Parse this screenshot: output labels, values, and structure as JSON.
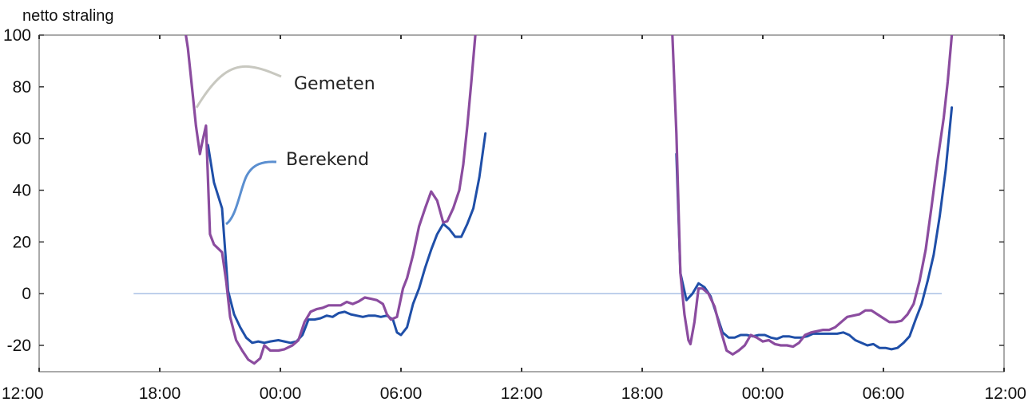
{
  "chart_data": {
    "type": "line",
    "title": "",
    "ylabel": "netto straling",
    "xlabel": "",
    "ylim": [
      -30,
      100
    ],
    "yticks": [
      100,
      80,
      60,
      40,
      20,
      0,
      -20
    ],
    "xlim_hours": [
      0,
      48
    ],
    "xtick_hours": [
      0,
      6,
      12,
      18,
      24,
      30,
      36,
      42,
      48
    ],
    "xtick_labels": [
      "12:00",
      "18:00",
      "00:00",
      "06:00",
      "12:00",
      "18:00",
      "00:00",
      "06:00",
      "12:00"
    ],
    "grid": false,
    "zero_line": {
      "y": 0,
      "x_from_hours": 4.7,
      "x_to_hours": 44.9,
      "color": "#a9bfe4"
    },
    "annotations": [
      {
        "text": "Gemeten",
        "series": "Gemeten"
      },
      {
        "text": "Berekend",
        "series": "Berekend"
      }
    ],
    "colors": {
      "Gemeten": "#8b4c9f",
      "Berekend": "#1f4fa8",
      "gemeten_leader": "#c8c8c0",
      "berekend_leader": "#5b8fd0"
    },
    "series": [
      {
        "name": "Gemeten",
        "segments": [
          [
            [
              7.3,
              100
            ],
            [
              7.4,
              95
            ],
            [
              7.6,
              80
            ],
            [
              7.8,
              65
            ],
            [
              8.0,
              54
            ],
            [
              8.1,
              58
            ],
            [
              8.3,
              65
            ],
            [
              8.5,
              23
            ],
            [
              8.7,
              19
            ],
            [
              8.9,
              17.5
            ],
            [
              9.1,
              16
            ],
            [
              9.3,
              5
            ],
            [
              9.5,
              -9
            ],
            [
              9.8,
              -18
            ],
            [
              10.1,
              -22
            ],
            [
              10.4,
              -25.5
            ],
            [
              10.7,
              -27
            ],
            [
              11.0,
              -25
            ],
            [
              11.2,
              -20
            ],
            [
              11.5,
              -22
            ],
            [
              11.9,
              -22
            ],
            [
              12.2,
              -21.5
            ],
            [
              12.6,
              -20
            ],
            [
              12.9,
              -18
            ],
            [
              13.2,
              -11
            ],
            [
              13.5,
              -7
            ],
            [
              13.8,
              -6
            ],
            [
              14.1,
              -5.5
            ],
            [
              14.4,
              -4.5
            ],
            [
              14.7,
              -4.5
            ],
            [
              15.0,
              -4.5
            ],
            [
              15.3,
              -3.2
            ],
            [
              15.6,
              -4
            ],
            [
              15.9,
              -3
            ],
            [
              16.2,
              -1.5
            ],
            [
              16.5,
              -2
            ],
            [
              16.8,
              -2.5
            ],
            [
              17.1,
              -4
            ],
            [
              17.3,
              -8
            ],
            [
              17.5,
              -10
            ],
            [
              17.8,
              -9
            ],
            [
              18.1,
              2
            ],
            [
              18.3,
              6
            ],
            [
              18.6,
              15
            ],
            [
              18.9,
              26
            ],
            [
              19.2,
              33
            ],
            [
              19.5,
              39.5
            ],
            [
              19.8,
              36
            ],
            [
              20.1,
              27.5
            ],
            [
              20.3,
              28
            ],
            [
              20.6,
              33
            ],
            [
              20.9,
              40
            ],
            [
              21.1,
              50
            ],
            [
              21.3,
              65
            ],
            [
              21.5,
              82
            ],
            [
              21.7,
              100
            ]
          ],
          [
            [
              31.5,
              100
            ],
            [
              31.7,
              62
            ],
            [
              31.9,
              8
            ],
            [
              32.1,
              -8
            ],
            [
              32.3,
              -18
            ],
            [
              32.4,
              -19.5
            ],
            [
              32.6,
              -11
            ],
            [
              32.8,
              2
            ],
            [
              33.0,
              2
            ],
            [
              33.3,
              0
            ],
            [
              33.6,
              -5
            ],
            [
              33.9,
              -14
            ],
            [
              34.2,
              -22
            ],
            [
              34.5,
              -23.5
            ],
            [
              34.8,
              -22
            ],
            [
              35.1,
              -20
            ],
            [
              35.4,
              -16
            ],
            [
              35.7,
              -17
            ],
            [
              36.0,
              -18.5
            ],
            [
              36.3,
              -18
            ],
            [
              36.6,
              -19.5
            ],
            [
              36.9,
              -20
            ],
            [
              37.2,
              -20
            ],
            [
              37.5,
              -20.5
            ],
            [
              37.8,
              -19
            ],
            [
              38.1,
              -16
            ],
            [
              38.4,
              -15
            ],
            [
              38.7,
              -14.5
            ],
            [
              39.0,
              -14
            ],
            [
              39.3,
              -14
            ],
            [
              39.6,
              -13
            ],
            [
              39.9,
              -11
            ],
            [
              40.2,
              -9
            ],
            [
              40.5,
              -8.5
            ],
            [
              40.8,
              -8
            ],
            [
              41.1,
              -6.5
            ],
            [
              41.4,
              -6.5
            ],
            [
              41.7,
              -8
            ],
            [
              42.0,
              -9.5
            ],
            [
              42.3,
              -11
            ],
            [
              42.6,
              -11
            ],
            [
              42.9,
              -10.5
            ],
            [
              43.2,
              -8
            ],
            [
              43.5,
              -4
            ],
            [
              43.8,
              5
            ],
            [
              44.1,
              17
            ],
            [
              44.4,
              34
            ],
            [
              44.7,
              52
            ],
            [
              45.0,
              68
            ],
            [
              45.2,
              82
            ],
            [
              45.4,
              100
            ]
          ]
        ]
      },
      {
        "name": "Berekend",
        "segments": [
          [
            [
              8.4,
              57.5
            ],
            [
              8.7,
              43
            ],
            [
              9.1,
              33
            ],
            [
              9.4,
              1
            ],
            [
              9.7,
              -8
            ],
            [
              10.0,
              -13
            ],
            [
              10.3,
              -17
            ],
            [
              10.6,
              -19
            ],
            [
              10.9,
              -18.5
            ],
            [
              11.2,
              -19
            ],
            [
              11.5,
              -18.5
            ],
            [
              11.9,
              -18
            ],
            [
              12.2,
              -18.5
            ],
            [
              12.5,
              -19
            ],
            [
              12.8,
              -18.5
            ],
            [
              13.1,
              -16
            ],
            [
              13.4,
              -10
            ],
            [
              13.7,
              -10
            ],
            [
              14.0,
              -9.5
            ],
            [
              14.3,
              -8.5
            ],
            [
              14.6,
              -9
            ],
            [
              14.9,
              -7.5
            ],
            [
              15.2,
              -7
            ],
            [
              15.5,
              -8
            ],
            [
              15.8,
              -8.5
            ],
            [
              16.1,
              -9
            ],
            [
              16.4,
              -8.5
            ],
            [
              16.7,
              -8.5
            ],
            [
              17.0,
              -9
            ],
            [
              17.3,
              -8.5
            ],
            [
              17.6,
              -10
            ],
            [
              17.8,
              -15
            ],
            [
              18.0,
              -16
            ],
            [
              18.3,
              -13
            ],
            [
              18.6,
              -4
            ],
            [
              18.9,
              2
            ],
            [
              19.2,
              10
            ],
            [
              19.5,
              17
            ],
            [
              19.8,
              23
            ],
            [
              20.1,
              27
            ],
            [
              20.4,
              25
            ],
            [
              20.7,
              22
            ],
            [
              21.0,
              22
            ],
            [
              21.3,
              27
            ],
            [
              21.6,
              33
            ],
            [
              21.9,
              45
            ],
            [
              22.2,
              62
            ]
          ],
          [
            [
              31.7,
              54
            ],
            [
              31.9,
              8
            ],
            [
              32.2,
              -2.5
            ],
            [
              32.5,
              0
            ],
            [
              32.8,
              4
            ],
            [
              33.1,
              2.5
            ],
            [
              33.4,
              -1
            ],
            [
              33.7,
              -8
            ],
            [
              34.0,
              -15
            ],
            [
              34.3,
              -17
            ],
            [
              34.6,
              -17
            ],
            [
              34.9,
              -16
            ],
            [
              35.2,
              -16
            ],
            [
              35.5,
              -16.5
            ],
            [
              35.8,
              -16
            ],
            [
              36.1,
              -16
            ],
            [
              36.4,
              -17
            ],
            [
              36.7,
              -17.5
            ],
            [
              37.0,
              -16.5
            ],
            [
              37.3,
              -16.5
            ],
            [
              37.6,
              -17
            ],
            [
              37.9,
              -17
            ],
            [
              38.2,
              -16.5
            ],
            [
              38.5,
              -15.5
            ],
            [
              38.8,
              -15.5
            ],
            [
              39.1,
              -15.5
            ],
            [
              39.4,
              -15.5
            ],
            [
              39.7,
              -15.5
            ],
            [
              40.0,
              -15
            ],
            [
              40.3,
              -16
            ],
            [
              40.6,
              -18
            ],
            [
              40.9,
              -19
            ],
            [
              41.2,
              -20
            ],
            [
              41.5,
              -19.5
            ],
            [
              41.8,
              -21
            ],
            [
              42.1,
              -21
            ],
            [
              42.4,
              -21.5
            ],
            [
              42.7,
              -21
            ],
            [
              43.0,
              -19
            ],
            [
              43.3,
              -16.5
            ],
            [
              43.6,
              -10
            ],
            [
              43.9,
              -4
            ],
            [
              44.2,
              5
            ],
            [
              44.5,
              15
            ],
            [
              44.8,
              30
            ],
            [
              45.1,
              48
            ],
            [
              45.4,
              72
            ]
          ]
        ]
      }
    ]
  }
}
